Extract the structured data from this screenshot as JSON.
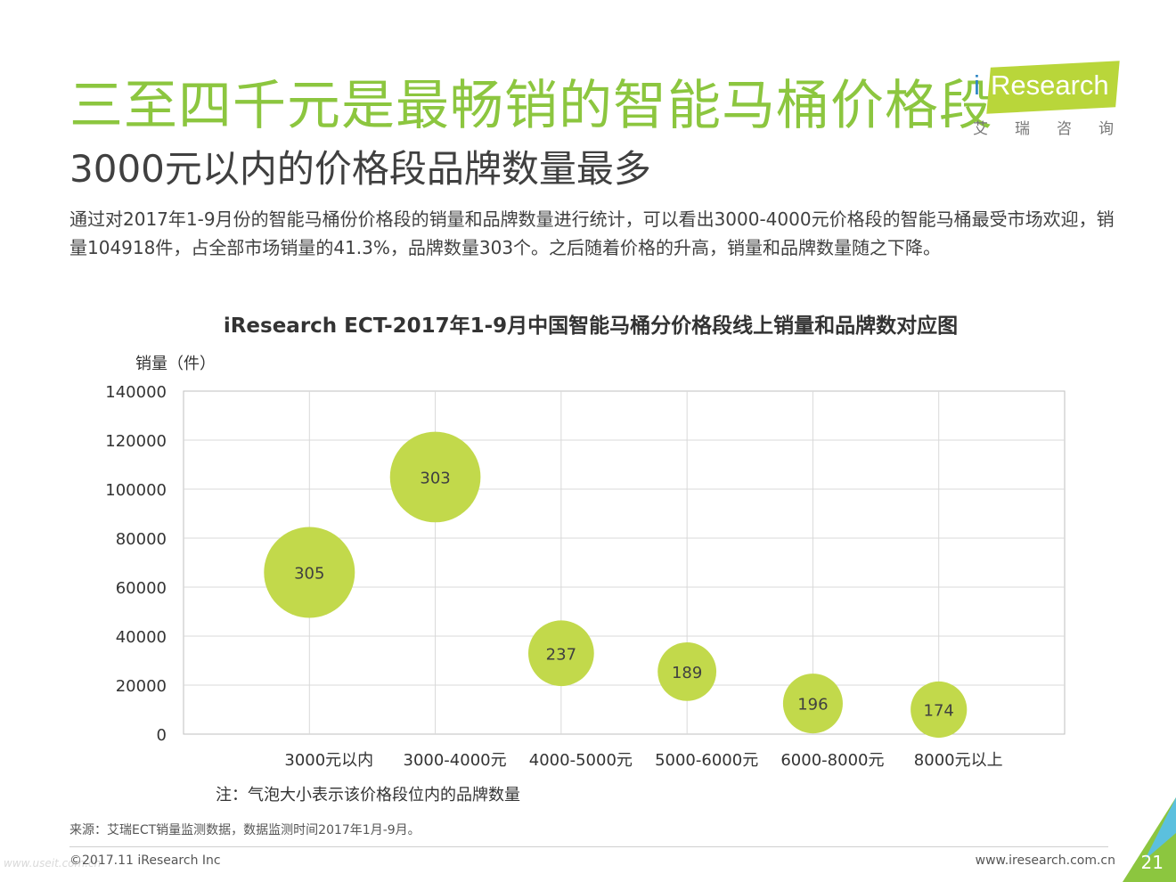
{
  "header": {
    "title": "三至四千元是最畅销的智能马桶价格段",
    "subtitle": "3000元以内的价格段品牌数量最多",
    "description": "通过对2017年1-9月份的智能马桶份价格段的销量和品牌数量进行统计，可以看出3000-4000元价格段的智能马桶最受市场欢迎，销量104918件，占全部市场销量的41.3%，品牌数量303个。之后随着价格的升高，销量和品牌数量随之下降。"
  },
  "logo": {
    "wordmark": "Research",
    "letter_i": "i",
    "chinese": "艾瑞咨询"
  },
  "chart_data": {
    "type": "scatter",
    "title": "iResearch ECT-2017年1-9月中国智能马桶分价格段线上销量和品牌数对应图",
    "ylabel": "销量（件）",
    "xlabel": "",
    "categories": [
      "3000元以内",
      "3000-4000元",
      "4000-5000元",
      "5000-6000元",
      "6000-8000元",
      "8000元以上"
    ],
    "values": [
      66000,
      104918,
      33000,
      25500,
      12500,
      10000
    ],
    "bubble_sizes": [
      305,
      303,
      237,
      189,
      196,
      174
    ],
    "ylim": [
      0,
      140000
    ],
    "yticks": [
      0,
      20000,
      40000,
      60000,
      80000,
      100000,
      120000,
      140000
    ],
    "grid": true,
    "bubble_color": "#c2d94b",
    "note": "注：气泡大小表示该价格段位内的品牌数量"
  },
  "footer": {
    "source": "来源：艾瑞ECT销量监测数据，数据监测时间2017年1月-9月。",
    "copyright": "©2017.11 iResearch Inc",
    "website": "www.iresearch.com.cn",
    "page": "21",
    "watermark": "www.useit.com.cn"
  },
  "colors": {
    "title": "#8cc63f",
    "accent_green": "#b9d63a",
    "accent_blue": "#3a8ec7"
  }
}
